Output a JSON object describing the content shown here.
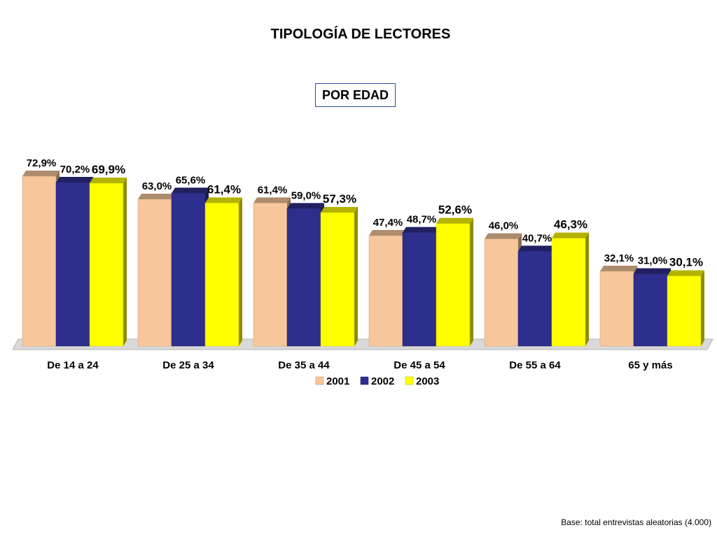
{
  "chart_data": {
    "type": "bar",
    "title": "TIPOLOGÍA DE LECTORES",
    "subtitle": "POR EDAD",
    "categories": [
      "De 14 a 24",
      "De 25 a 34",
      "De 35 a 44",
      "De 45 a 54",
      "De 55 a 64",
      "65 y más"
    ],
    "series": [
      {
        "name": "2001",
        "color": "#f7c79b",
        "values": [
          72.9,
          63.0,
          61.4,
          47.4,
          46.0,
          32.1
        ],
        "labels": [
          "72,9%",
          "63,0%",
          "61,4%",
          "47,4%",
          "46,0%",
          "32,1%"
        ]
      },
      {
        "name": "2002",
        "color": "#2e2e8c",
        "values": [
          70.2,
          65.6,
          59.0,
          48.7,
          40.7,
          31.0
        ],
        "labels": [
          "70,2%",
          "65,6%",
          "59,0%",
          "48,7%",
          "40,7%",
          "31,0%"
        ]
      },
      {
        "name": "2003",
        "color": "#ffff00",
        "values": [
          69.9,
          61.4,
          57.3,
          52.6,
          46.3,
          30.1
        ],
        "labels": [
          "69,9%",
          "61,4%",
          "57,3%",
          "52,6%",
          "46,3%",
          "30,1%"
        ]
      }
    ],
    "legend_position": "bottom",
    "grid": false
  },
  "footer": "Base: total entrevistas aleatorias (4.000)"
}
